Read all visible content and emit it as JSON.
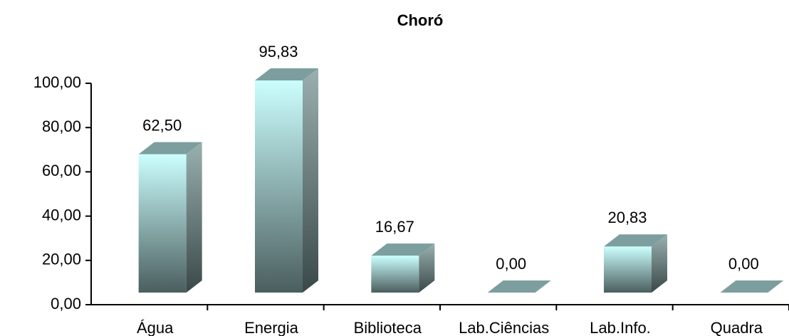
{
  "chart_data": {
    "type": "bar3d",
    "title": "Choró",
    "categories": [
      "Água",
      "Energia",
      "Biblioteca",
      "Lab.Ciências",
      "Lab.Info.",
      "Quadra"
    ],
    "values": [
      62.5,
      95.83,
      16.67,
      0,
      20.83,
      0
    ],
    "value_labels": [
      "62,50",
      "95,83",
      "16,67",
      "0,00",
      "20,83",
      "0,00"
    ],
    "color": "#ccffff",
    "ylim": [
      0,
      100
    ],
    "yticks": [
      {
        "value": 0,
        "label": "0,00"
      },
      {
        "value": 20,
        "label": "20,00"
      },
      {
        "value": 40,
        "label": "40,00"
      },
      {
        "value": 60,
        "label": "60,00"
      },
      {
        "value": 80,
        "label": "80,00"
      },
      {
        "value": 100,
        "label": "100,00"
      }
    ]
  }
}
